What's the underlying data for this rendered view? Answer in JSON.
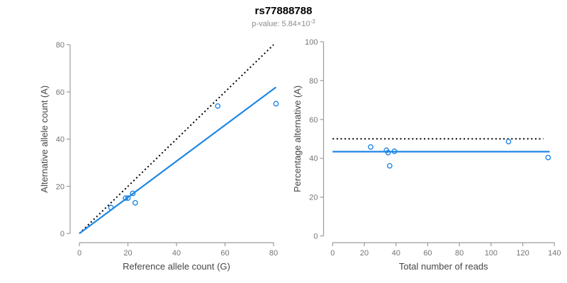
{
  "header": {
    "title": "rs77888788",
    "subtitle_prefix": "p-value: ",
    "subtitle_value": "5.84×10",
    "subtitle_exponent": "-3"
  },
  "colors": {
    "accent_blue": "#1e87e5",
    "reference_black": "#000000",
    "axis_line": "#9c9c9c",
    "tick_text": "#757575",
    "axis_title_text": "#454545",
    "subtitle_text": "#8c8c8c"
  },
  "chart_data": [
    {
      "type": "scatter",
      "title": "",
      "xlabel": "Reference allele count (G)",
      "ylabel": "Alternative allele count (A)",
      "xlim": [
        0,
        80
      ],
      "ylim": [
        0,
        80
      ],
      "xticks": [
        0,
        20,
        40,
        60,
        80
      ],
      "yticks": [
        0,
        20,
        40,
        60,
        80
      ],
      "grid": false,
      "legend": null,
      "points": [
        {
          "x": 13,
          "y": 11
        },
        {
          "x": 19,
          "y": 15
        },
        {
          "x": 20,
          "y": 15
        },
        {
          "x": 22,
          "y": 17
        },
        {
          "x": 23,
          "y": 13
        },
        {
          "x": 57,
          "y": 54
        },
        {
          "x": 81,
          "y": 55
        }
      ],
      "lines": [
        {
          "name": "identity-line",
          "style": "dotted",
          "color_key": "reference_black",
          "x1": 0,
          "y1": 0,
          "x2": 80,
          "y2": 80
        },
        {
          "name": "fit-line",
          "style": "solid",
          "color_key": "accent_blue",
          "x1": 0,
          "y1": 0,
          "x2": 81,
          "y2": 62
        }
      ]
    },
    {
      "type": "scatter",
      "title": "",
      "xlabel": "Total number of reads",
      "ylabel": "Percentage alternative (A)",
      "xlim": [
        0,
        140
      ],
      "ylim": [
        0,
        100
      ],
      "xticks": [
        0,
        20,
        40,
        60,
        80,
        100,
        120,
        140
      ],
      "yticks": [
        0,
        20,
        40,
        60,
        80,
        100
      ],
      "grid": false,
      "legend": null,
      "points": [
        {
          "x": 24,
          "y": 45.8
        },
        {
          "x": 34,
          "y": 44.1
        },
        {
          "x": 35,
          "y": 42.9
        },
        {
          "x": 39,
          "y": 43.6
        },
        {
          "x": 36,
          "y": 36.1
        },
        {
          "x": 111,
          "y": 48.6
        },
        {
          "x": 136,
          "y": 40.4
        }
      ],
      "lines": [
        {
          "name": "expected-50pct-line",
          "style": "dotted",
          "color_key": "reference_black",
          "x1": 0,
          "y1": 50,
          "x2": 133,
          "y2": 50
        },
        {
          "name": "fit-line",
          "style": "solid",
          "color_key": "accent_blue",
          "x1": 0,
          "y1": 43.4,
          "x2": 137,
          "y2": 43.4
        }
      ]
    }
  ]
}
